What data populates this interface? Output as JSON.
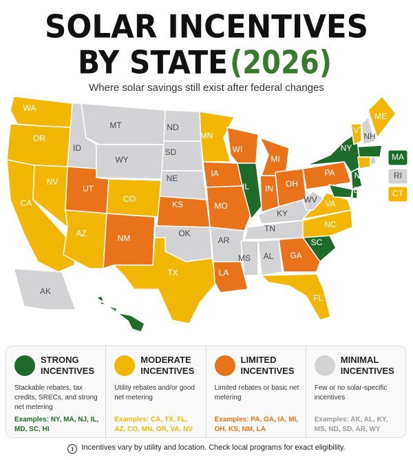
{
  "header": {
    "title_line1": "SOLAR INCENTIVES",
    "title_line2": "BY STATE",
    "title_year": "(2026)",
    "subtitle": "Where solar savings still exist after federal changes"
  },
  "legend": [
    {
      "title_line1": "STRONG",
      "title_line2": "INCENTIVES",
      "color": "#1f6b2c",
      "text_color": "#ffffff",
      "description": "Stackable rebates, tax credits, SRECs, and strong net metering",
      "examples": "Examples: NY, MA, NJ, IL, MD, SC, HI"
    },
    {
      "title_line1": "MODERATE",
      "title_line2": "INCENTIVES",
      "color": "#f2b705",
      "text_color": "#ffffff",
      "description": "Utility rebates and/or good net metering",
      "examples": "Examples: CA, TX, FL, AZ, CO, MN, OR, VA, NV"
    },
    {
      "title_line1": "LIMITED",
      "title_line2": "INCENTIVES",
      "color": "#e8731a",
      "text_color": "#ffffff",
      "description": "Limited rebates or basic net metering",
      "examples": "Examples: PA, GA, IA, MI, OH, KS, NM, LA"
    },
    {
      "title_line1": "MINIMAL",
      "title_line2": "INCENTIVES",
      "color": "#d3d3d5",
      "text_color": "#4a4a4a",
      "description": "Few or no solar-specific incentives",
      "examples": "Examples: AK, AL, KY, MS, ND, SD, AR, WY"
    }
  ],
  "map": {
    "states": [
      {
        "label": "WA",
        "legend": 1
      },
      {
        "label": "OR",
        "legend": 1
      },
      {
        "label": "CA",
        "legend": 1
      },
      {
        "label": "NV",
        "legend": 1
      },
      {
        "label": "ID",
        "legend": 3
      },
      {
        "label": "MT",
        "legend": 3
      },
      {
        "label": "WY",
        "legend": 3
      },
      {
        "label": "UT",
        "legend": 2
      },
      {
        "label": "CO",
        "legend": 1
      },
      {
        "label": "AZ",
        "legend": 1
      },
      {
        "label": "NM",
        "legend": 2
      },
      {
        "label": "ND",
        "legend": 3
      },
      {
        "label": "SD",
        "legend": 3
      },
      {
        "label": "NE",
        "legend": 3
      },
      {
        "label": "KS",
        "legend": 2
      },
      {
        "label": "OK",
        "legend": 3
      },
      {
        "label": "TX",
        "legend": 1
      },
      {
        "label": "MN",
        "legend": 1
      },
      {
        "label": "IA",
        "legend": 2
      },
      {
        "label": "MO",
        "legend": 2
      },
      {
        "label": "AR",
        "legend": 3
      },
      {
        "label": "LA",
        "legend": 2
      },
      {
        "label": "WI",
        "legend": 2
      },
      {
        "label": "IL",
        "legend": 0
      },
      {
        "label": "MI",
        "legend": 2
      },
      {
        "label": "IN",
        "legend": 2
      },
      {
        "label": "OH",
        "legend": 2
      },
      {
        "label": "KY",
        "legend": 3
      },
      {
        "label": "TN",
        "legend": 3
      },
      {
        "label": "MS",
        "legend": 3
      },
      {
        "label": "AL",
        "legend": 3
      },
      {
        "label": "GA",
        "legend": 2
      },
      {
        "label": "FL",
        "legend": 1
      },
      {
        "label": "SC",
        "legend": 0
      },
      {
        "label": "NC",
        "legend": 1
      },
      {
        "label": "VA",
        "legend": 1
      },
      {
        "label": "WV",
        "legend": 3
      },
      {
        "label": "PA",
        "legend": 2
      },
      {
        "label": "NY",
        "legend": 0
      },
      {
        "label": "VT",
        "legend": 1
      },
      {
        "label": "NH",
        "legend": 3
      },
      {
        "label": "ME",
        "legend": 1
      },
      {
        "label": "MA",
        "legend": 0
      },
      {
        "label": "RI",
        "legend": 3
      },
      {
        "label": "CT",
        "legend": 1
      },
      {
        "label": "NJ",
        "legend": 0
      },
      {
        "label": "MD",
        "legend": 0
      },
      {
        "label": "DE",
        "legend": 0
      },
      {
        "label": "AK",
        "legend": 3
      },
      {
        "label": "HI",
        "legend": 0
      }
    ]
  },
  "footer": "Incentives vary by utility and location. Check local programs for exact eligibility."
}
